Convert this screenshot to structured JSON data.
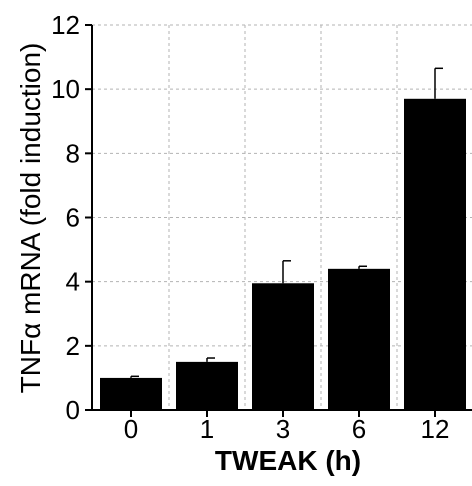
{
  "chart_data": {
    "type": "bar",
    "categories": [
      "0",
      "1",
      "3",
      "6",
      "12"
    ],
    "values": [
      1.0,
      1.5,
      3.95,
      4.4,
      9.7
    ],
    "errors": [
      0.05,
      0.12,
      0.7,
      0.08,
      0.95
    ],
    "xlabel": "TWEAK (h)",
    "ylabel": "TNFα mRNA (fold induction)",
    "ylim": [
      0,
      12
    ],
    "yticks": [
      0,
      2,
      4,
      6,
      8,
      10,
      12
    ],
    "grid": true,
    "bar_color": "#000000",
    "grid_color": "#b3b3b3"
  }
}
